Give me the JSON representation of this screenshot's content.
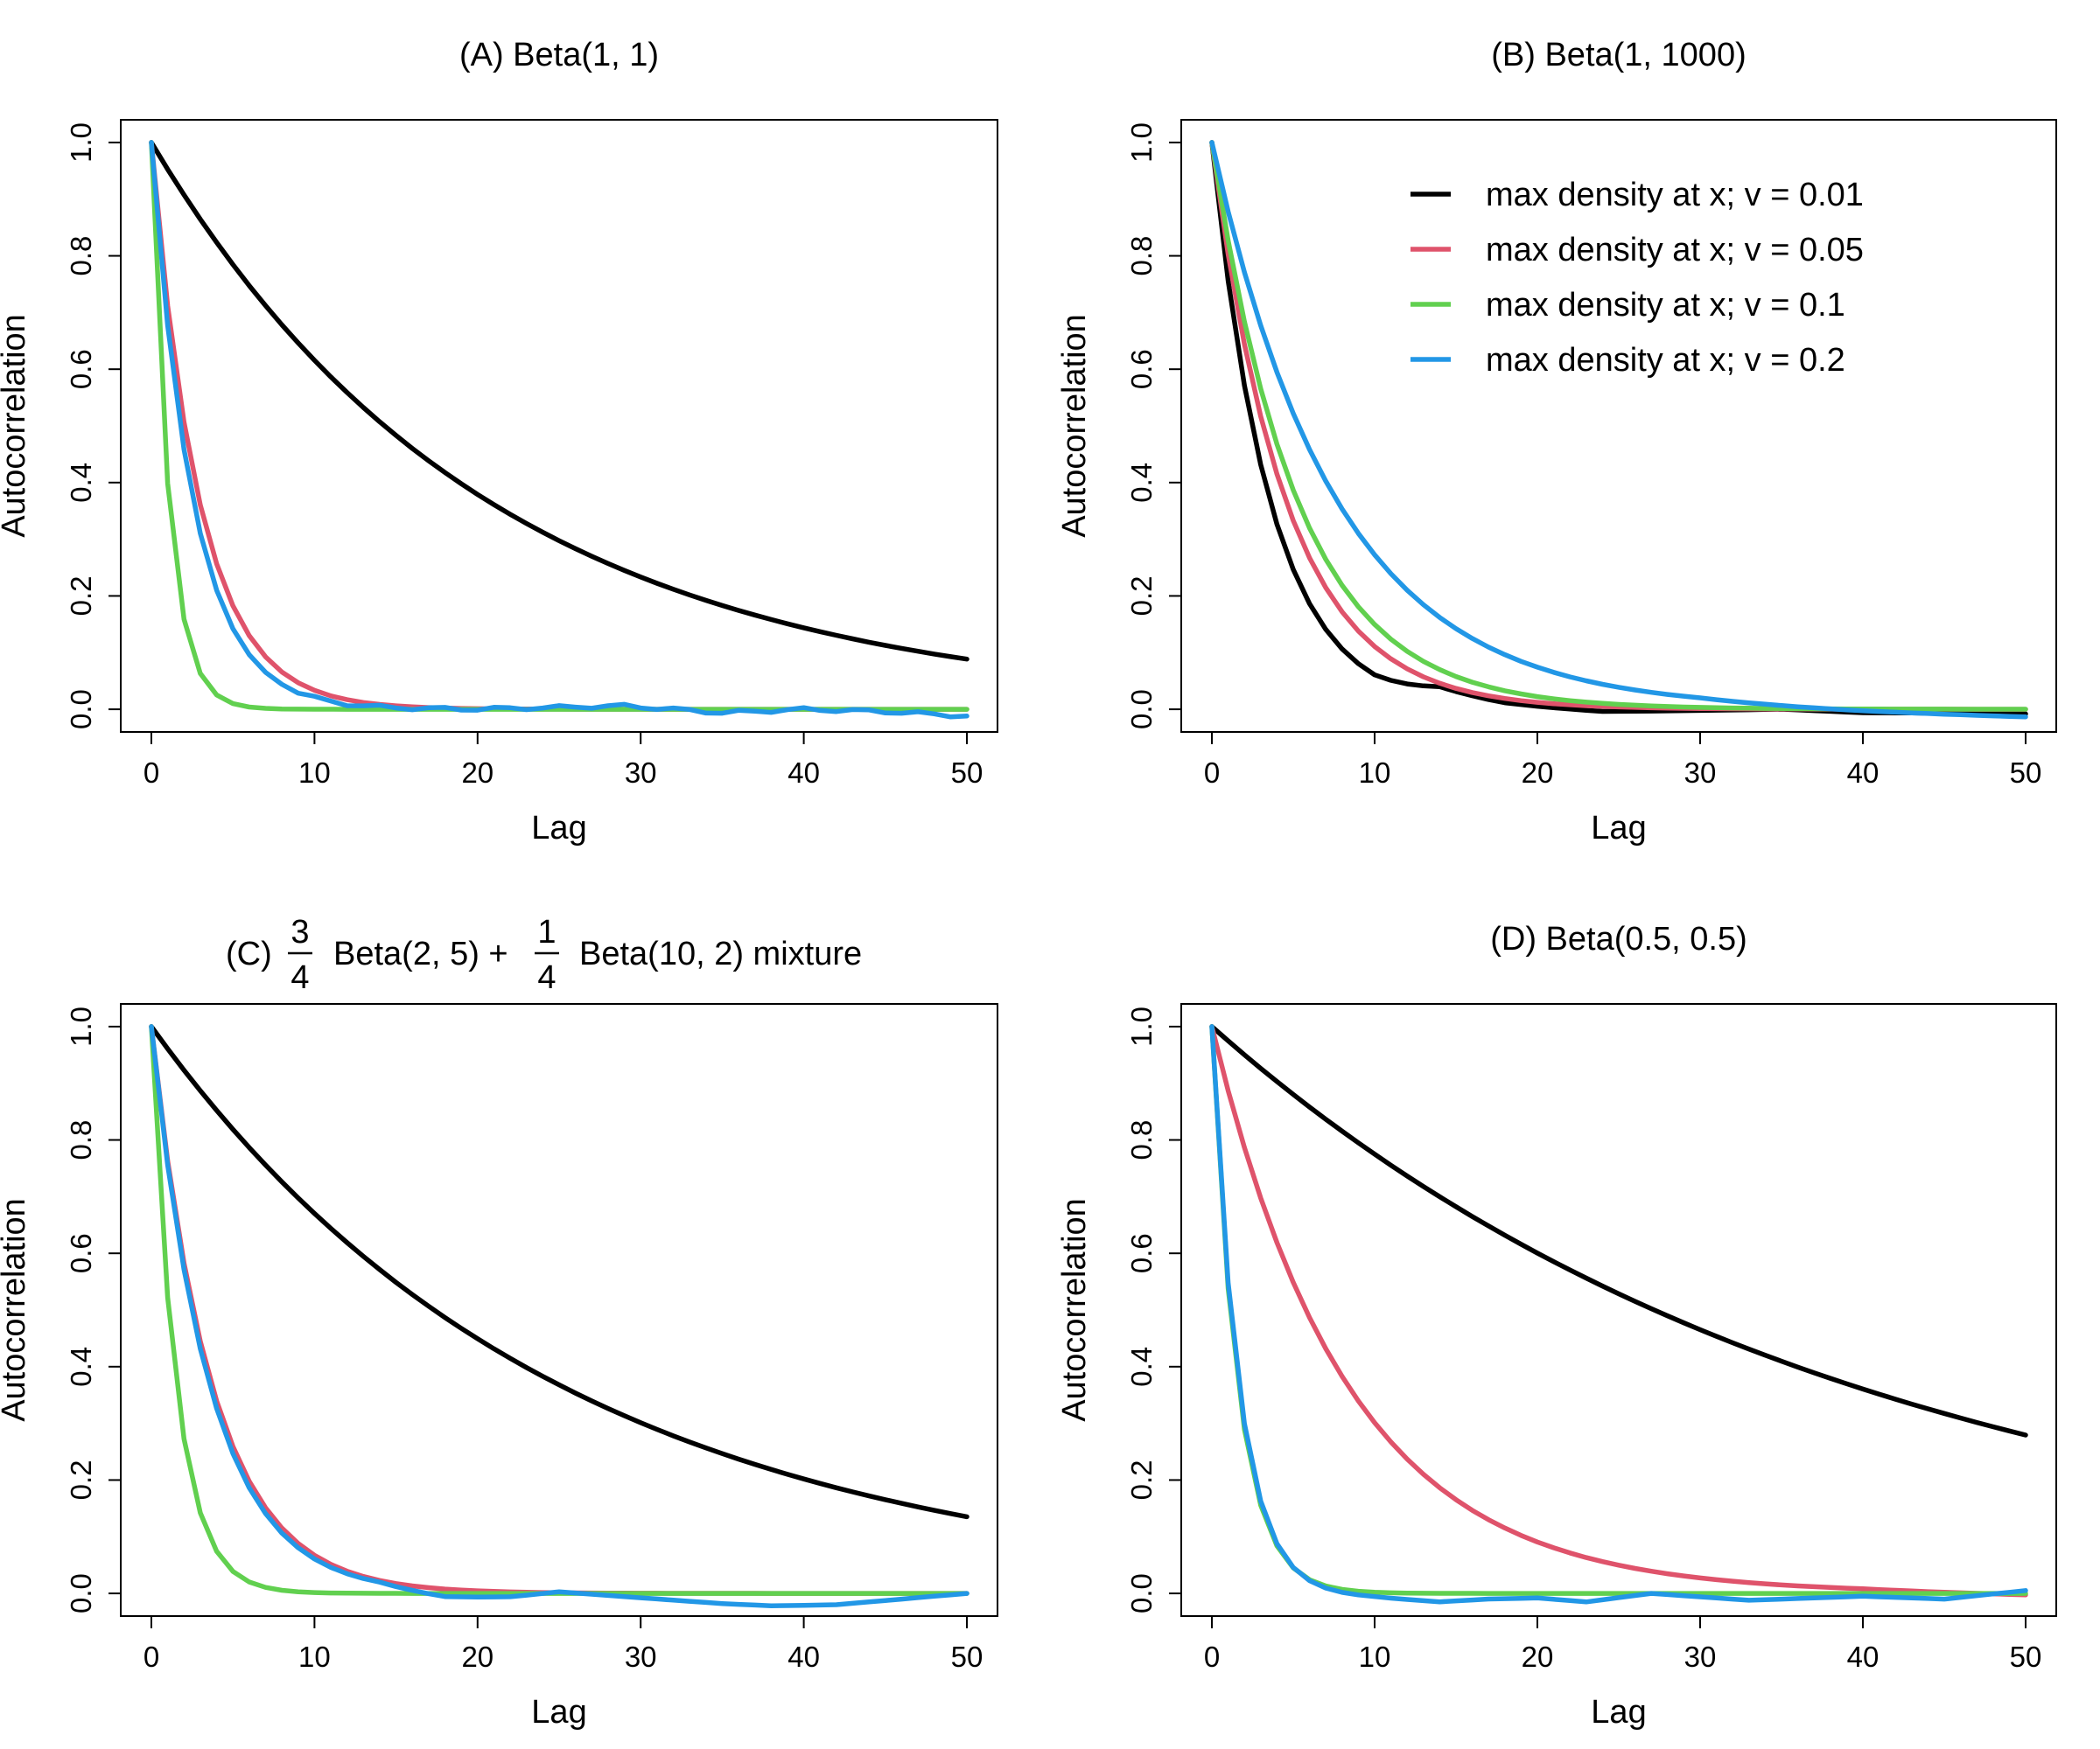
{
  "legend": {
    "entries": [
      {
        "label": "max density at x; v = 0.01",
        "color": "#000000"
      },
      {
        "label": "max density at x; v = 0.05",
        "color": "#DF536B"
      },
      {
        "label": "max density at x; v = 0.1",
        "color": "#61D04F"
      },
      {
        "label": "max density at x; v = 0.2",
        "color": "#2297E6"
      }
    ]
  },
  "panels": [
    {
      "title": "(A) Beta(1, 1)",
      "xlabel": "Lag",
      "ylabel": "Autocorrelation",
      "xticks": [
        "0",
        "10",
        "20",
        "30",
        "40",
        "50"
      ],
      "yticks": [
        "0.0",
        "0.2",
        "0.4",
        "0.6",
        "0.8",
        "1.0"
      ]
    },
    {
      "title": "(B) Beta(1, 1000)",
      "xlabel": "Lag",
      "ylabel": "Autocorrelation",
      "xticks": [
        "0",
        "10",
        "20",
        "30",
        "40",
        "50"
      ],
      "yticks": [
        "0.0",
        "0.2",
        "0.4",
        "0.6",
        "0.8",
        "1.0"
      ]
    },
    {
      "title": "(C)",
      "title_parts": {
        "prefix": "(C)",
        "frac1_num": "3",
        "frac1_den": "4",
        "mid": "Beta(2, 5) +",
        "frac2_num": "1",
        "frac2_den": "4",
        "suffix": "Beta(10, 2) mixture"
      },
      "xlabel": "Lag",
      "ylabel": "Autocorrelation",
      "xticks": [
        "0",
        "10",
        "20",
        "30",
        "40",
        "50"
      ],
      "yticks": [
        "0.0",
        "0.2",
        "0.4",
        "0.6",
        "0.8",
        "1.0"
      ]
    },
    {
      "title": "(D) Beta(0.5, 0.5)",
      "xlabel": "Lag",
      "ylabel": "Autocorrelation",
      "xticks": [
        "0",
        "10",
        "20",
        "30",
        "40",
        "50"
      ],
      "yticks": [
        "0.0",
        "0.2",
        "0.4",
        "0.6",
        "0.8",
        "1.0"
      ]
    }
  ],
  "chart_data": [
    {
      "type": "line",
      "title": "(A) Beta(1, 1)",
      "xlabel": "Lag",
      "ylabel": "Autocorrelation",
      "xlim": [
        0,
        50
      ],
      "ylim": [
        -0.04,
        1.04
      ],
      "series": [
        {
          "name": "max density at x; v = 0.01",
          "color": "#000000",
          "model": {
            "kind": "exp",
            "rate": 0.0485
          }
        },
        {
          "name": "max density at x; v = 0.05",
          "color": "#DF536B",
          "model": {
            "kind": "exp",
            "rate": 0.34
          }
        },
        {
          "name": "max density at x; v = 0.1",
          "color": "#61D04F",
          "model": {
            "kind": "exp",
            "rate": 0.92
          }
        },
        {
          "name": "max density at x; v = 0.2",
          "color": "#2297E6",
          "model": {
            "kind": "exp",
            "rate": 0.39,
            "noise": 0.006,
            "tail": [
              [
                0,
                0
              ],
              [
                20,
                0
              ],
              [
                29,
                0.006
              ],
              [
                35,
                -0.006
              ],
              [
                40,
                0
              ],
              [
                45,
                -0.004
              ],
              [
                50,
                -0.012
              ]
            ]
          }
        }
      ]
    },
    {
      "type": "line",
      "title": "(B) Beta(1, 1000)",
      "xlabel": "Lag",
      "ylabel": "Autocorrelation",
      "xlim": [
        0,
        50
      ],
      "ylim": [
        -0.04,
        1.04
      ],
      "series": [
        {
          "name": "max density at x; v = 0.01",
          "color": "#000000",
          "model": {
            "kind": "exp",
            "rate": 0.28,
            "tail": [
              [
                0,
                0
              ],
              [
                10,
                0
              ],
              [
                14,
                0.02
              ],
              [
                18,
                0.005
              ],
              [
                24,
                -0.005
              ],
              [
                35,
                0
              ],
              [
                40,
                -0.006
              ],
              [
                50,
                -0.008
              ]
            ]
          }
        },
        {
          "name": "max density at x; v = 0.05",
          "color": "#DF536B",
          "model": {
            "kind": "exp",
            "rate": 0.22
          }
        },
        {
          "name": "max density at x; v = 0.1",
          "color": "#61D04F",
          "model": {
            "kind": "exp",
            "rate": 0.19
          }
        },
        {
          "name": "max density at x; v = 0.2",
          "color": "#2297E6",
          "model": {
            "kind": "exp",
            "rate": 0.13,
            "tail": [
              [
                0,
                0
              ],
              [
                30,
                0
              ],
              [
                40,
                -0.008
              ],
              [
                50,
                -0.015
              ]
            ]
          }
        }
      ]
    },
    {
      "type": "line",
      "title": "(C) 3/4 Beta(2, 5) + 1/4 Beta(10, 2) mixture",
      "xlabel": "Lag",
      "ylabel": "Autocorrelation",
      "xlim": [
        0,
        50
      ],
      "ylim": [
        -0.04,
        1.04
      ],
      "series": [
        {
          "name": "max density at x; v = 0.01",
          "color": "#000000",
          "model": {
            "kind": "exp",
            "rate": 0.04
          }
        },
        {
          "name": "max density at x; v = 0.05",
          "color": "#DF536B",
          "model": {
            "kind": "exp",
            "rate": 0.27
          }
        },
        {
          "name": "max density at x; v = 0.1",
          "color": "#61D04F",
          "model": {
            "kind": "exp",
            "rate": 0.65
          }
        },
        {
          "name": "max density at x; v = 0.2",
          "color": "#2297E6",
          "model": {
            "kind": "exp",
            "rate": 0.28,
            "tail": [
              [
                0,
                0
              ],
              [
                14,
                0
              ],
              [
                18,
                -0.012
              ],
              [
                22,
                -0.008
              ],
              [
                25,
                0.002
              ],
              [
                30,
                -0.008
              ],
              [
                35,
                -0.018
              ],
              [
                38,
                -0.022
              ],
              [
                42,
                -0.02
              ],
              [
                46,
                -0.01
              ],
              [
                50,
                0
              ]
            ]
          }
        }
      ]
    },
    {
      "type": "line",
      "title": "(D) Beta(0.5, 0.5)",
      "xlabel": "Lag",
      "ylabel": "Autocorrelation",
      "xlim": [
        0,
        50
      ],
      "ylim": [
        -0.04,
        1.04
      ],
      "series": [
        {
          "name": "max density at x; v = 0.01",
          "color": "#000000",
          "model": {
            "kind": "exp",
            "rate": 0.0255
          }
        },
        {
          "name": "max density at x; v = 0.05",
          "color": "#DF536B",
          "model": {
            "kind": "exp",
            "rate": 0.12,
            "tail": [
              [
                0,
                0
              ],
              [
                40,
                0
              ],
              [
                50,
                -0.005
              ]
            ]
          }
        },
        {
          "name": "max density at x; v = 0.1",
          "color": "#61D04F",
          "model": {
            "kind": "exp",
            "rate": 0.62
          }
        },
        {
          "name": "max density at x; v = 0.2",
          "color": "#2297E6",
          "model": {
            "kind": "exp",
            "rate": 0.6,
            "tail": [
              [
                0,
                0
              ],
              [
                10,
                -0.008
              ],
              [
                14,
                -0.015
              ],
              [
                17,
                -0.01
              ],
              [
                20,
                -0.008
              ],
              [
                23,
                -0.015
              ],
              [
                27,
                0
              ],
              [
                33,
                -0.012
              ],
              [
                40,
                -0.005
              ],
              [
                45,
                -0.01
              ],
              [
                50,
                0.005
              ]
            ]
          }
        }
      ]
    }
  ]
}
